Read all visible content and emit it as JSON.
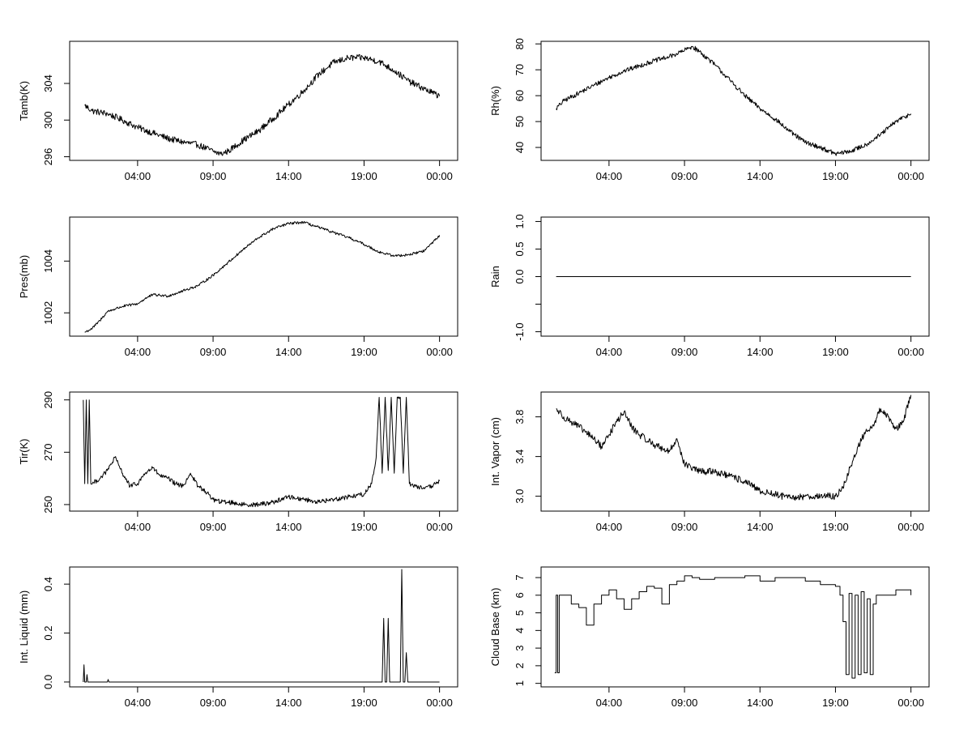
{
  "chart_data": [
    {
      "id": "tamb",
      "type": "line",
      "ylabel": "Tamb(K)",
      "x_ticks": [
        "04:00",
        "09:00",
        "14:00",
        "19:00",
        "00:00"
      ],
      "x_tick_hours": [
        4,
        9,
        14,
        19,
        24
      ],
      "xlim": [
        -0.5,
        25.2
      ],
      "ylim": [
        295.6,
        308.6
      ],
      "y_ticks": [
        296,
        300,
        304
      ],
      "x": [
        0.5,
        1,
        2,
        3,
        4,
        5,
        6,
        7,
        8,
        9,
        9.5,
        10,
        11,
        12,
        13,
        14,
        15,
        16,
        17,
        18,
        19,
        20,
        21,
        22,
        23,
        24
      ],
      "y": [
        301.6,
        301,
        300.7,
        300,
        299.2,
        298.6,
        298,
        297.6,
        297.3,
        296.6,
        296.3,
        296.6,
        297.8,
        298.8,
        300.2,
        301.7,
        303.2,
        305,
        306.3,
        306.8,
        306.8,
        306.4,
        305.4,
        304.2,
        303.4,
        302.6
      ],
      "noise": 0.35
    },
    {
      "id": "rh",
      "type": "line",
      "ylabel": "Rh(%)",
      "x_ticks": [
        "04:00",
        "09:00",
        "14:00",
        "19:00",
        "00:00"
      ],
      "x_tick_hours": [
        4,
        9,
        14,
        19,
        24
      ],
      "xlim": [
        -0.5,
        25.2
      ],
      "ylim": [
        35,
        81
      ],
      "y_ticks": [
        40,
        50,
        60,
        70,
        80
      ],
      "x": [
        0.5,
        1,
        2,
        3,
        4,
        5,
        6,
        7,
        8,
        9,
        9.5,
        10,
        11,
        12,
        13,
        14,
        15,
        16,
        17,
        18,
        19,
        20,
        21,
        22,
        23,
        24
      ],
      "y": [
        55,
        58,
        61,
        64,
        67,
        69.5,
        71.5,
        73.5,
        75,
        77.5,
        79,
        77,
        72,
        66,
        60,
        55,
        51,
        46,
        42,
        40,
        37.5,
        38.5,
        41,
        45,
        50,
        53
      ],
      "noise": 0.9
    },
    {
      "id": "pres",
      "type": "line",
      "ylabel": "Pres(mb)",
      "x_ticks": [
        "04:00",
        "09:00",
        "14:00",
        "19:00",
        "00:00"
      ],
      "x_tick_hours": [
        4,
        9,
        14,
        19,
        24
      ],
      "xlim": [
        -0.5,
        25.2
      ],
      "ylim": [
        1001.1,
        1005.7
      ],
      "y_ticks": [
        1002,
        1004
      ],
      "x": [
        0.5,
        1,
        1.5,
        2,
        3,
        4,
        4.5,
        5,
        6,
        7,
        8,
        9,
        10,
        11,
        12,
        13,
        14,
        15,
        16,
        17,
        18,
        19,
        20,
        21,
        22,
        23,
        24
      ],
      "y": [
        1001.25,
        1001.4,
        1001.7,
        1002.05,
        1002.25,
        1002.35,
        1002.55,
        1002.7,
        1002.65,
        1002.85,
        1003.05,
        1003.45,
        1003.95,
        1004.45,
        1004.9,
        1005.25,
        1005.45,
        1005.5,
        1005.3,
        1005.1,
        1004.9,
        1004.65,
        1004.35,
        1004.2,
        1004.25,
        1004.4,
        1005.0
      ],
      "noise": 0.05
    },
    {
      "id": "rain",
      "type": "line",
      "ylabel": "Rain",
      "x_ticks": [
        "04:00",
        "09:00",
        "14:00",
        "19:00",
        "00:00"
      ],
      "x_tick_hours": [
        4,
        9,
        14,
        19,
        24
      ],
      "xlim": [
        -0.5,
        25.2
      ],
      "ylim": [
        -1.08,
        1.08
      ],
      "y_ticks": [
        -1.0,
        -0.5,
        0.0,
        0.5,
        1.0
      ],
      "y_tick_labels": [
        "-1.0",
        "",
        "0.0",
        "0.5",
        "1.0"
      ],
      "x": [
        0.5,
        24
      ],
      "y": [
        0,
        0
      ],
      "noise": 0
    },
    {
      "id": "tir",
      "type": "line",
      "ylabel": "Tir(K)",
      "x_ticks": [
        "04:00",
        "09:00",
        "14:00",
        "19:00",
        "00:00"
      ],
      "x_tick_hours": [
        4,
        9,
        14,
        19,
        24
      ],
      "xlim": [
        -0.5,
        25.2
      ],
      "ylim": [
        247.5,
        293
      ],
      "y_ticks": [
        250,
        270,
        290
      ],
      "x": [
        0.4,
        0.5,
        0.6,
        0.7,
        0.8,
        0.9,
        1,
        1.5,
        2,
        2.5,
        3,
        3.5,
        4,
        4.5,
        5,
        5.5,
        6,
        6.5,
        7,
        7.5,
        8,
        8.5,
        9,
        9.5,
        10,
        11,
        12,
        13,
        14,
        15,
        16,
        17,
        18,
        19,
        19.5,
        19.8,
        20,
        20.2,
        20.4,
        20.6,
        20.8,
        21,
        21.2,
        21.4,
        21.6,
        21.8,
        22,
        22.5,
        23,
        23.5,
        24
      ],
      "y": [
        290,
        258,
        290,
        258,
        290,
        258,
        258,
        260,
        263,
        268,
        262,
        257,
        258,
        262,
        264,
        261,
        260,
        258,
        257,
        262,
        257,
        255,
        252,
        251,
        251,
        250,
        250,
        251,
        253,
        252,
        251,
        252,
        253,
        254,
        258,
        268,
        291,
        262,
        291,
        263,
        291,
        262,
        291,
        291,
        262,
        291,
        258,
        257,
        256,
        257,
        259
      ],
      "noise": 0.9
    },
    {
      "id": "vapor",
      "type": "line",
      "ylabel": "Int. Vapor (cm)",
      "x_ticks": [
        "04:00",
        "09:00",
        "14:00",
        "19:00",
        "00:00"
      ],
      "x_tick_hours": [
        4,
        9,
        14,
        19,
        24
      ],
      "xlim": [
        -0.5,
        25.2
      ],
      "ylim": [
        2.85,
        4.05
      ],
      "y_ticks": [
        3.0,
        3.4,
        3.8
      ],
      "y_tick_labels": [
        "3.0",
        "3.4",
        "3.8"
      ],
      "x": [
        0.5,
        1,
        2,
        3,
        3.5,
        4,
        4.5,
        5,
        5.5,
        6,
        7,
        8,
        8.5,
        9,
        10,
        11,
        12,
        13,
        14,
        15,
        16,
        17,
        18,
        19,
        19.5,
        20,
        20.5,
        21,
        21.5,
        22,
        22.5,
        23,
        23.5,
        24
      ],
      "y": [
        3.88,
        3.8,
        3.7,
        3.58,
        3.5,
        3.62,
        3.75,
        3.85,
        3.7,
        3.62,
        3.52,
        3.45,
        3.58,
        3.32,
        3.25,
        3.25,
        3.2,
        3.15,
        3.05,
        3.02,
        2.98,
        3.0,
        3.0,
        3.0,
        3.08,
        3.3,
        3.5,
        3.65,
        3.72,
        3.88,
        3.8,
        3.68,
        3.75,
        4.02
      ],
      "noise": 0.035
    },
    {
      "id": "liquid",
      "type": "line",
      "ylabel": "Int. Liquid (mm)",
      "x_ticks": [
        "04:00",
        "09:00",
        "14:00",
        "19:00",
        "00:00"
      ],
      "x_tick_hours": [
        4,
        9,
        14,
        19,
        24
      ],
      "xlim": [
        -0.5,
        25.2
      ],
      "ylim": [
        -0.02,
        0.47
      ],
      "y_ticks": [
        0.0,
        0.2,
        0.4
      ],
      "y_tick_labels": [
        "0.0",
        "0.2",
        "0.4"
      ],
      "x": [
        0.4,
        0.45,
        0.5,
        0.6,
        0.65,
        0.7,
        2,
        2.05,
        2.1,
        20.2,
        20.3,
        20.4,
        20.5,
        20.6,
        20.7,
        20.8,
        20.9,
        21.4,
        21.5,
        21.6,
        21.7,
        21.8,
        21.9,
        24
      ],
      "y": [
        0,
        0.07,
        0,
        0,
        0.03,
        0,
        0,
        0.01,
        0,
        0,
        0.26,
        0,
        0,
        0.26,
        0,
        0,
        0,
        0,
        0.46,
        0,
        0,
        0.12,
        0,
        0
      ],
      "noise": 0
    },
    {
      "id": "cloudbase",
      "type": "line",
      "ylabel": "Cloud Base (km)",
      "x_ticks": [
        "04:00",
        "09:00",
        "14:00",
        "19:00",
        "00:00"
      ],
      "x_tick_hours": [
        4,
        9,
        14,
        19,
        24
      ],
      "xlim": [
        -0.5,
        25.2
      ],
      "ylim": [
        0.8,
        7.6
      ],
      "y_ticks": [
        1,
        2,
        3,
        4,
        5,
        6,
        7
      ],
      "x": [
        0.4,
        0.5,
        0.6,
        0.7,
        0.8,
        1,
        1.5,
        2,
        2.5,
        3,
        3.5,
        4,
        4.5,
        5,
        5.5,
        6,
        6.5,
        7,
        7.5,
        8,
        8.5,
        9,
        9.5,
        10,
        11,
        12,
        13,
        14,
        15,
        16,
        17,
        18,
        19,
        19.3,
        19.5,
        19.7,
        19.9,
        20.1,
        20.3,
        20.5,
        20.7,
        20.9,
        21.1,
        21.3,
        21.5,
        21.7,
        22,
        23,
        24
      ],
      "y": [
        1.6,
        6,
        1.6,
        6,
        6,
        6,
        5.5,
        5.3,
        4.3,
        5.5,
        6,
        6.3,
        5.8,
        5.2,
        5.8,
        6.2,
        6.5,
        6.4,
        5.5,
        6.6,
        6.8,
        7.1,
        7,
        6.9,
        7,
        7,
        7.1,
        6.8,
        7,
        7,
        6.8,
        6.6,
        6.5,
        6,
        4.5,
        1.5,
        6.1,
        1.3,
        6,
        1.5,
        6.2,
        1.6,
        5.8,
        1.5,
        5.5,
        6,
        6,
        6.3,
        6
      ]
    }
  ]
}
